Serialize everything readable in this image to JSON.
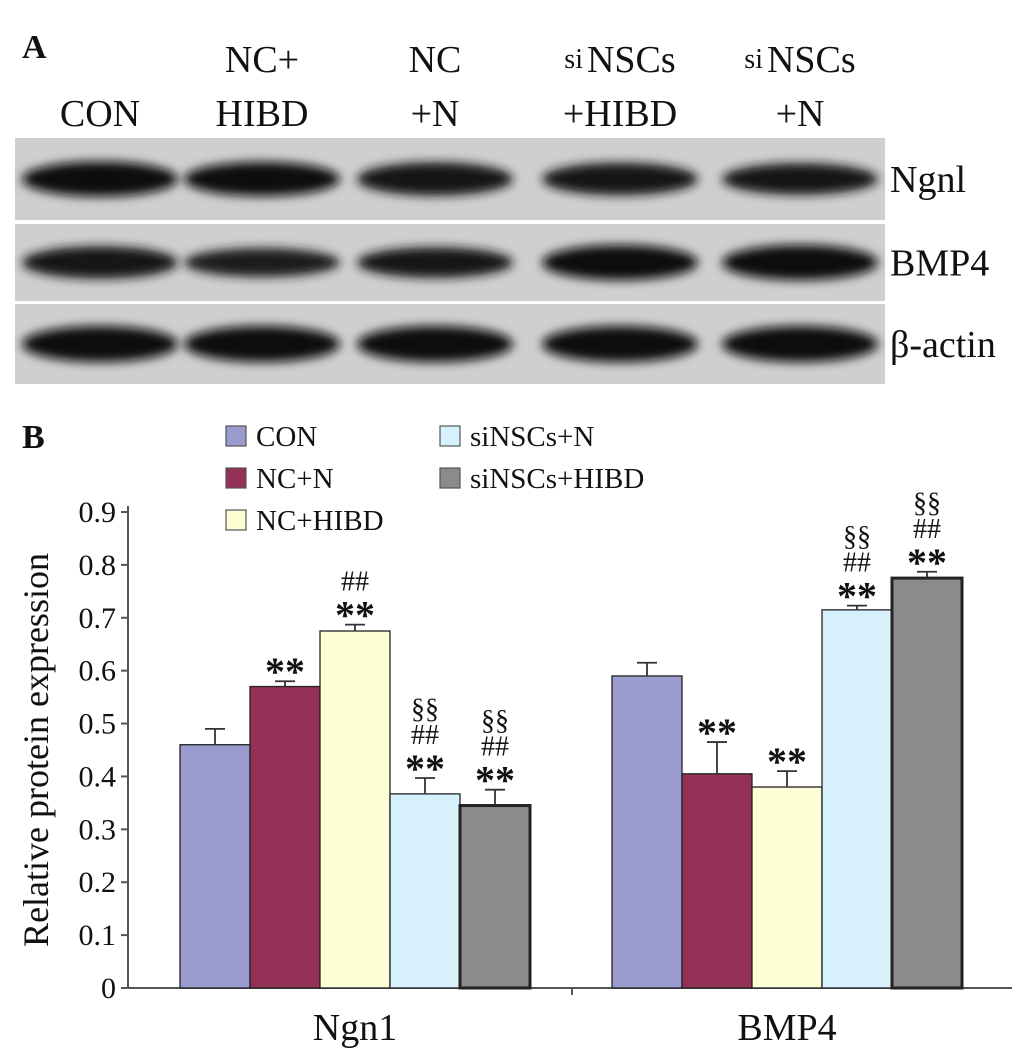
{
  "figure": {
    "panel_a_letter": "A",
    "panel_b_letter": "B"
  },
  "blot": {
    "lanes": [
      {
        "lines": [
          "",
          "CON"
        ]
      },
      {
        "lines": [
          "NC+",
          "HIBD"
        ]
      },
      {
        "lines": [
          "NC",
          "+N"
        ]
      },
      {
        "lines": [
          "si NSCs",
          "+HIBD"
        ],
        "prefix": "si",
        "rest": "NSCs"
      },
      {
        "lines": [
          "si NSCs",
          "+N"
        ],
        "prefix": "si",
        "rest": "NSCs"
      }
    ],
    "bands": [
      {
        "label": "Ngnl",
        "intensity": [
          0.95,
          0.9,
          0.85,
          0.8,
          0.75
        ]
      },
      {
        "label": "BMP4",
        "intensity": [
          0.8,
          0.6,
          0.7,
          0.95,
          0.95
        ]
      },
      {
        "label": "β-actin",
        "intensity": [
          1.0,
          1.0,
          1.0,
          1.0,
          1.0
        ]
      }
    ]
  },
  "chart_data": {
    "type": "bar",
    "ylabel": "Relative protein expression",
    "ylim": [
      0,
      0.9
    ],
    "yticks": [
      "0",
      "0.1",
      "0.2",
      "0.3",
      "0.4",
      "0.5",
      "0.6",
      "0.7",
      "0.8",
      "0.9"
    ],
    "categories": [
      "Ngn1",
      "BMP4"
    ],
    "legend_position": "top-left",
    "grid": false,
    "series": [
      {
        "name": "CON",
        "color": "#9a9ccf",
        "values": [
          0.46,
          0.59
        ],
        "errors": [
          0.03,
          0.025
        ],
        "annotations": [
          [],
          []
        ]
      },
      {
        "name": "NC+N",
        "color": "#953158",
        "values": [
          0.57,
          0.405
        ],
        "errors": [
          0.01,
          0.06
        ],
        "annotations": [
          [
            "**"
          ],
          [
            "**"
          ]
        ]
      },
      {
        "name": "NC+HIBD",
        "color": "#fefed4",
        "values": [
          0.675,
          0.38
        ],
        "errors": [
          0.012,
          0.03
        ],
        "annotations": [
          [
            "**",
            "##"
          ],
          [
            "**"
          ]
        ]
      },
      {
        "name": "siNSCs+N",
        "color": "#d6f1fb",
        "values": [
          0.367,
          0.715
        ],
        "errors": [
          0.03,
          0.008
        ],
        "annotations": [
          [
            "**",
            "##",
            "§§"
          ],
          [
            "**",
            "##",
            "§§"
          ]
        ]
      },
      {
        "name": "siNSCs+HIBD",
        "color": "#8b8b8b",
        "values": [
          0.345,
          0.775
        ],
        "errors": [
          0.03,
          0.012
        ],
        "annotations": [
          [
            "**",
            "##",
            "§§"
          ],
          [
            "**",
            "##",
            "§§"
          ]
        ]
      }
    ]
  }
}
